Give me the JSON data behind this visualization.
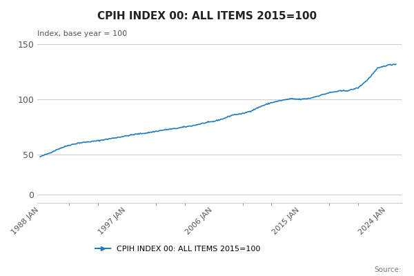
{
  "title": "CPIH INDEX 00: ALL ITEMS 2015=100",
  "ylabel": "Index, base year = 100",
  "line_color": "#1f7bbf",
  "legend_label": "CPIH INDEX 00: ALL ITEMS 2015=100",
  "source_text": "Source:",
  "background_color": "#ffffff",
  "grid_color": "#cccccc",
  "xtick_years": [
    1988,
    1997,
    2006,
    2015,
    2024
  ],
  "xtick_labels": [
    "1988 JAN",
    "1997 JAN",
    "2006 JAN",
    "2015 JAN",
    "2024 JAN"
  ],
  "annual_values": {
    "1988": 48.0,
    "1989": 51.5,
    "1990": 55.5,
    "1991": 58.5,
    "1992": 60.5,
    "1993": 61.5,
    "1994": 62.5,
    "1995": 64.0,
    "1996": 65.5,
    "1997": 67.0,
    "1998": 68.5,
    "1999": 69.5,
    "2000": 71.0,
    "2001": 72.5,
    "2002": 73.5,
    "2003": 75.0,
    "2004": 76.5,
    "2005": 78.5,
    "2006": 80.0,
    "2007": 82.5,
    "2008": 86.0,
    "2009": 87.0,
    "2010": 90.0,
    "2011": 94.0,
    "2012": 97.0,
    "2013": 99.0,
    "2014": 100.5,
    "2015": 100.0,
    "2016": 101.0,
    "2017": 103.5,
    "2018": 106.0,
    "2019": 107.5,
    "2020": 108.0,
    "2021": 110.5,
    "2022": 118.0,
    "2023": 128.0,
    "2024": 131.0,
    "2025": 132.0
  }
}
